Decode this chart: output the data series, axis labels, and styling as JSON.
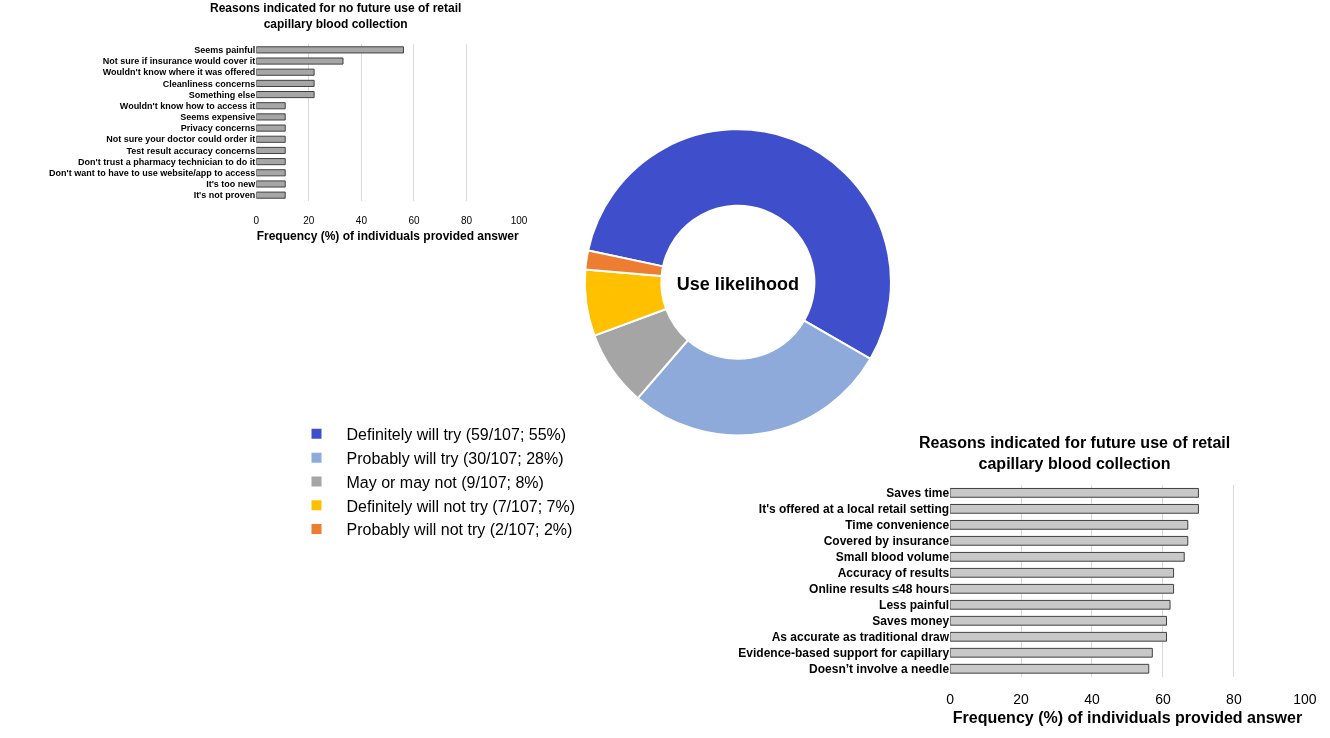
{
  "chart_data": [
    {
      "type": "bar",
      "orientation": "horizontal",
      "title": "Reasons indicated for no future use of retail capillary blood collection",
      "xlabel": "Frequency (%) of individuals provided answer",
      "categories": [
        "Seems painful",
        "Not sure if insurance would cover it",
        "Wouldn't know where it was offered",
        "Cleanliness concerns",
        "Something else",
        "Wouldn't know how to access it",
        "Seems expensive",
        "Privacy concerns",
        "Not sure your doctor could order it",
        "Test result accuracy concerns",
        "Don't trust a pharmacy technician to do it",
        "Don't want to have to use website/app to access",
        "It's too new",
        "It's not proven"
      ],
      "values": [
        56,
        33,
        22,
        22,
        22,
        11,
        11,
        11,
        11,
        11,
        11,
        11,
        11,
        11
      ],
      "color": "#a6a6a6",
      "xlim": [
        0,
        100
      ],
      "xticks": [
        0,
        20,
        40,
        60,
        80,
        100
      ],
      "grid": "x",
      "legend": false
    },
    {
      "type": "donut",
      "title": "Use likelihood",
      "categories": [
        "Definitely will try (59/107; 55%)",
        "Probably will try (30/107; 28%)",
        "May or may not (9/107; 8%)",
        "Definitely will not try (7/107; 7%)",
        "Probably will not try (2/107; 2%)"
      ],
      "values": [
        55,
        28,
        8,
        7,
        2
      ],
      "colors": [
        "#3f4fcc",
        "#8eaadb",
        "#a5a5a5",
        "#ffc000",
        "#ed7d31"
      ],
      "legend": "bottom left"
    },
    {
      "type": "bar",
      "orientation": "horizontal",
      "title": "Reasons indicated for future use of retail capillary blood collection",
      "xlabel": "Frequency (%) of individuals provided answer",
      "categories": [
        "Saves time",
        "It's offered at a local retail setting",
        "Time convenience",
        "Covered by insurance",
        "Small blood volume",
        "Accuracy of results",
        "Online results ≤48 hours",
        "Less painful",
        "Saves money",
        "As accurate as traditional draw",
        "Evidence-based support for capillary",
        "Doesn’t involve a needle"
      ],
      "values": [
        70,
        70,
        67,
        67,
        66,
        63,
        63,
        62,
        61,
        61,
        57,
        56
      ],
      "color": "#c8c8c8",
      "xlim": [
        0,
        100
      ],
      "xticks": [
        0,
        20,
        40,
        60,
        80,
        100
      ],
      "grid": "x",
      "legend": false
    }
  ]
}
